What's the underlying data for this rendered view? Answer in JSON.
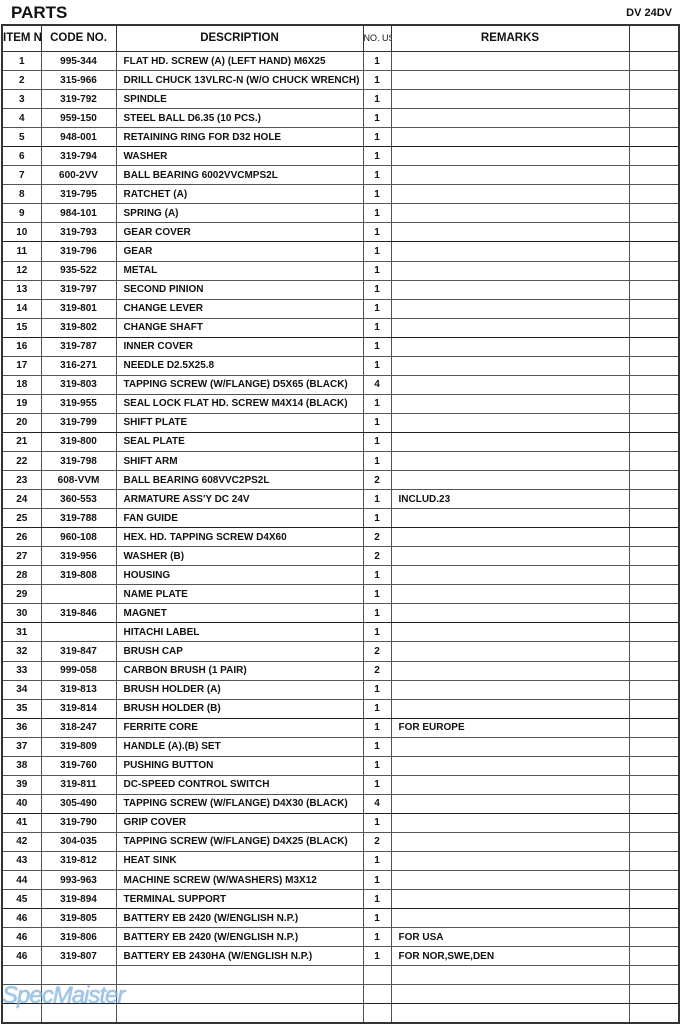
{
  "title": "PARTS",
  "model": "DV 24DV",
  "watermark": "SpecMaister",
  "headers": {
    "item": "ITEM NO.",
    "code": "CODE NO.",
    "description": "DESCRIPTION",
    "used": "NO. USED",
    "remarks": "REMARKS"
  },
  "rows": [
    [
      "1",
      "995-344",
      "FLAT HD. SCREW (A) (LEFT HAND) M6X25",
      "1",
      ""
    ],
    [
      "2",
      "315-966",
      "DRILL CHUCK 13VLRC-N (W/O CHUCK WRENCH)",
      "1",
      ""
    ],
    [
      "3",
      "319-792",
      "SPINDLE",
      "1",
      ""
    ],
    [
      "4",
      "959-150",
      "STEEL BALL D6.35 (10 PCS.)",
      "1",
      ""
    ],
    [
      "5",
      "948-001",
      "RETAINING RING FOR D32 HOLE",
      "1",
      ""
    ],
    [
      "6",
      "319-794",
      "WASHER",
      "1",
      ""
    ],
    [
      "7",
      "600-2VV",
      "BALL BEARING 6002VVCMPS2L",
      "1",
      ""
    ],
    [
      "8",
      "319-795",
      "RATCHET (A)",
      "1",
      ""
    ],
    [
      "9",
      "984-101",
      "SPRING (A)",
      "1",
      ""
    ],
    [
      "10",
      "319-793",
      "GEAR COVER",
      "1",
      ""
    ],
    [
      "11",
      "319-796",
      "GEAR",
      "1",
      ""
    ],
    [
      "12",
      "935-522",
      "METAL",
      "1",
      ""
    ],
    [
      "13",
      "319-797",
      "SECOND PINION",
      "1",
      ""
    ],
    [
      "14",
      "319-801",
      "CHANGE LEVER",
      "1",
      ""
    ],
    [
      "15",
      "319-802",
      "CHANGE SHAFT",
      "1",
      ""
    ],
    [
      "16",
      "319-787",
      "INNER COVER",
      "1",
      ""
    ],
    [
      "17",
      "316-271",
      "NEEDLE D2.5X25.8",
      "1",
      ""
    ],
    [
      "18",
      "319-803",
      "TAPPING SCREW (W/FLANGE) D5X65 (BLACK)",
      "4",
      ""
    ],
    [
      "19",
      "319-955",
      "SEAL LOCK FLAT HD. SCREW M4X14 (BLACK)",
      "1",
      ""
    ],
    [
      "20",
      "319-799",
      "SHIFT PLATE",
      "1",
      ""
    ],
    [
      "21",
      "319-800",
      "SEAL PLATE",
      "1",
      ""
    ],
    [
      "22",
      "319-798",
      "SHIFT ARM",
      "1",
      ""
    ],
    [
      "23",
      "608-VVM",
      "BALL BEARING 608VVC2PS2L",
      "2",
      ""
    ],
    [
      "24",
      "360-553",
      "ARMATURE ASS'Y DC 24V",
      "1",
      "INCLUD.23"
    ],
    [
      "25",
      "319-788",
      "FAN GUIDE",
      "1",
      ""
    ],
    [
      "26",
      "960-108",
      "HEX. HD. TAPPING SCREW D4X60",
      "2",
      ""
    ],
    [
      "27",
      "319-956",
      "WASHER (B)",
      "2",
      ""
    ],
    [
      "28",
      "319-808",
      "HOUSING",
      "1",
      ""
    ],
    [
      "29",
      "",
      "NAME PLATE",
      "1",
      ""
    ],
    [
      "30",
      "319-846",
      "MAGNET",
      "1",
      ""
    ],
    [
      "31",
      "",
      "HITACHI LABEL",
      "1",
      ""
    ],
    [
      "32",
      "319-847",
      "BRUSH CAP",
      "2",
      ""
    ],
    [
      "33",
      "999-058",
      "CARBON BRUSH (1 PAIR)",
      "2",
      ""
    ],
    [
      "34",
      "319-813",
      "BRUSH HOLDER (A)",
      "1",
      ""
    ],
    [
      "35",
      "319-814",
      "BRUSH HOLDER (B)",
      "1",
      ""
    ],
    [
      "36",
      "318-247",
      "FERRITE CORE",
      "1",
      "FOR EUROPE"
    ],
    [
      "37",
      "319-809",
      "HANDLE (A).(B) SET",
      "1",
      ""
    ],
    [
      "38",
      "319-760",
      "PUSHING BUTTON",
      "1",
      ""
    ],
    [
      "39",
      "319-811",
      "DC-SPEED CONTROL SWITCH",
      "1",
      ""
    ],
    [
      "40",
      "305-490",
      "TAPPING SCREW (W/FLANGE) D4X30 (BLACK)",
      "4",
      ""
    ],
    [
      "41",
      "319-790",
      "GRIP COVER",
      "1",
      ""
    ],
    [
      "42",
      "304-035",
      "TAPPING SCREW (W/FLANGE) D4X25 (BLACK)",
      "2",
      ""
    ],
    [
      "43",
      "319-812",
      "HEAT SINK",
      "1",
      ""
    ],
    [
      "44",
      "993-963",
      "MACHINE SCREW (W/WASHERS) M3X12",
      "1",
      ""
    ],
    [
      "45",
      "319-894",
      "TERMINAL SUPPORT",
      "1",
      ""
    ],
    [
      "46",
      "319-805",
      "BATTERY EB 2420 (W/ENGLISH N.P.)",
      "1",
      ""
    ],
    [
      "46",
      "319-806",
      "BATTERY EB 2420 (W/ENGLISH N.P.)",
      "1",
      "FOR USA"
    ],
    [
      "46",
      "319-807",
      "BATTERY EB 2430HA (W/ENGLISH N.P.)",
      "1",
      "FOR NOR,SWE,DEN"
    ],
    [
      "",
      "",
      "",
      "",
      ""
    ],
    [
      "",
      "",
      "",
      "",
      ""
    ],
    [
      "",
      "",
      "",
      "",
      ""
    ]
  ]
}
